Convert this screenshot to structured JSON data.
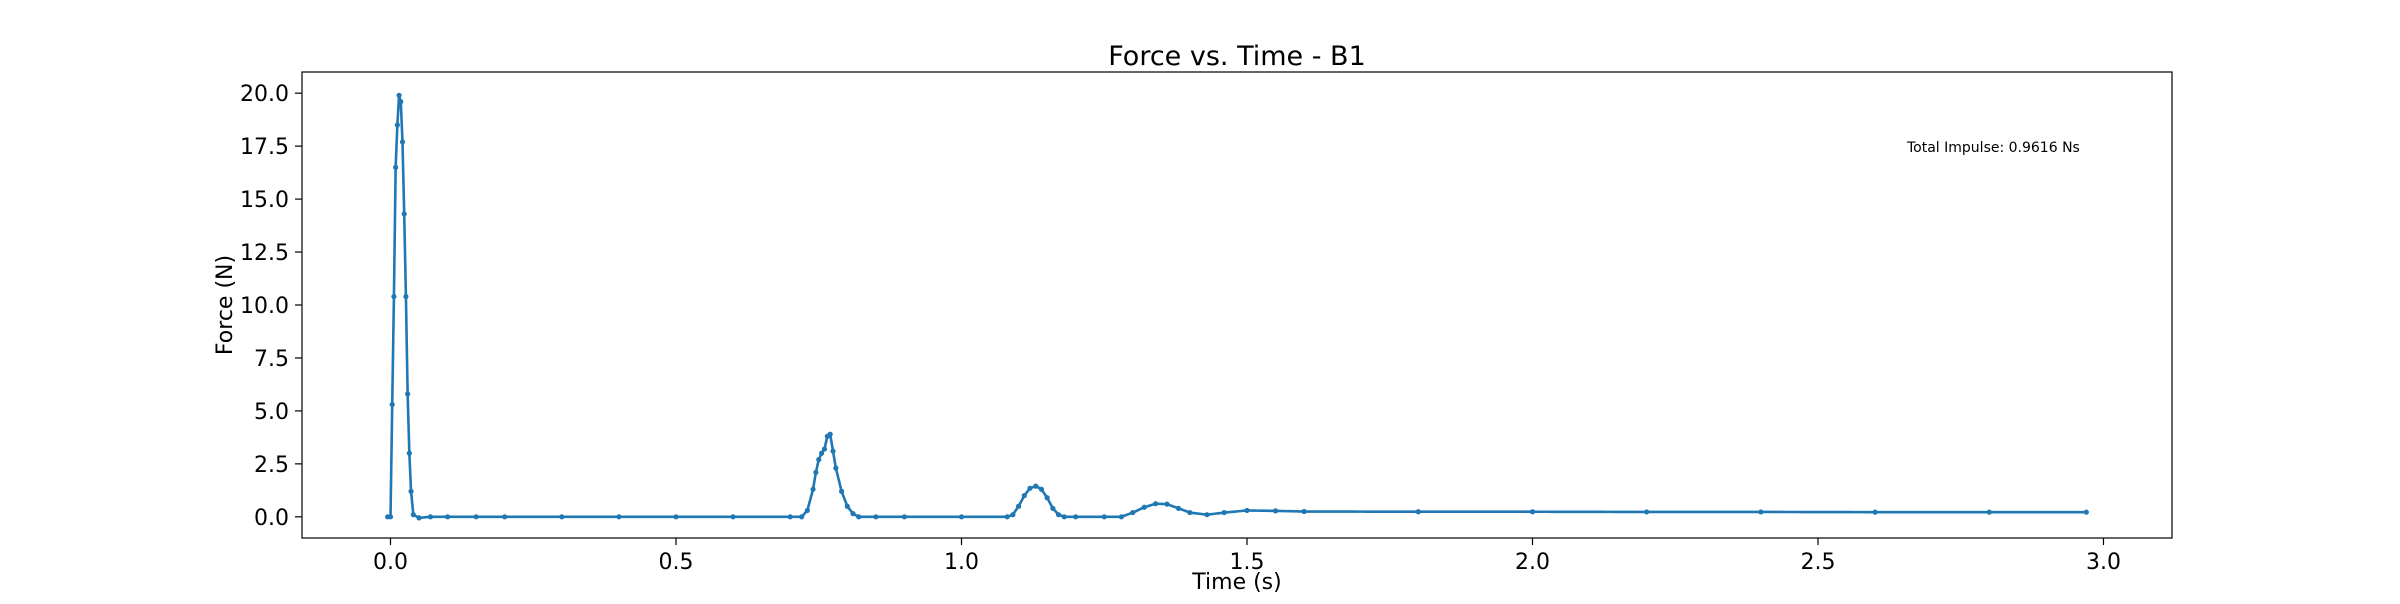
{
  "chart_data": {
    "type": "line",
    "title": "Force vs. Time - B1",
    "xlabel": "Time (s)",
    "ylabel": "Force (N)",
    "xlim": [
      -0.155,
      3.12
    ],
    "ylim": [
      -1.0,
      21.0
    ],
    "x_ticks": [
      0.0,
      0.5,
      1.0,
      1.5,
      2.0,
      2.5,
      3.0
    ],
    "x_tick_labels": [
      "0.0",
      "0.5",
      "1.0",
      "1.5",
      "2.0",
      "2.5",
      "3.0"
    ],
    "y_ticks": [
      0.0,
      2.5,
      5.0,
      7.5,
      10.0,
      12.5,
      15.0,
      17.5,
      20.0
    ],
    "y_tick_labels": [
      "0.0",
      "2.5",
      "5.0",
      "7.5",
      "10.0",
      "12.5",
      "15.0",
      "17.5",
      "20.0"
    ],
    "grid": false,
    "legend": "none",
    "annotation": {
      "text": "Total Impulse: 0.9616 Ns"
    },
    "series": [
      {
        "color": "#1f77b4",
        "marker": "dot",
        "x": [
          -0.005,
          0.0,
          0.003,
          0.006,
          0.009,
          0.012,
          0.015,
          0.018,
          0.021,
          0.024,
          0.027,
          0.03,
          0.033,
          0.036,
          0.04,
          0.05,
          0.07,
          0.1,
          0.15,
          0.2,
          0.3,
          0.4,
          0.5,
          0.6,
          0.7,
          0.72,
          0.73,
          0.74,
          0.745,
          0.75,
          0.755,
          0.76,
          0.765,
          0.77,
          0.775,
          0.78,
          0.79,
          0.8,
          0.81,
          0.82,
          0.85,
          0.9,
          1.0,
          1.08,
          1.09,
          1.1,
          1.11,
          1.12,
          1.13,
          1.14,
          1.15,
          1.16,
          1.17,
          1.18,
          1.2,
          1.25,
          1.28,
          1.3,
          1.32,
          1.34,
          1.36,
          1.38,
          1.4,
          1.43,
          1.46,
          1.5,
          1.55,
          1.6,
          1.8,
          2.0,
          2.2,
          2.4,
          2.6,
          2.8,
          2.97
        ],
        "y": [
          0.0,
          0.0,
          5.3,
          10.4,
          16.5,
          18.5,
          19.9,
          19.6,
          17.7,
          14.3,
          10.4,
          5.8,
          3.0,
          1.2,
          0.1,
          -0.05,
          0.0,
          0.0,
          0.0,
          0.0,
          0.0,
          0.0,
          0.0,
          0.0,
          0.0,
          0.0,
          0.3,
          1.3,
          2.1,
          2.7,
          3.0,
          3.2,
          3.8,
          3.9,
          3.1,
          2.3,
          1.2,
          0.5,
          0.15,
          0.0,
          0.0,
          0.0,
          0.0,
          0.0,
          0.1,
          0.5,
          1.0,
          1.35,
          1.45,
          1.3,
          0.9,
          0.4,
          0.1,
          0.0,
          0.0,
          0.0,
          0.0,
          0.2,
          0.45,
          0.62,
          0.6,
          0.4,
          0.2,
          0.1,
          0.2,
          0.3,
          0.28,
          0.25,
          0.24,
          0.24,
          0.23,
          0.23,
          0.22,
          0.22,
          0.22
        ]
      }
    ]
  }
}
